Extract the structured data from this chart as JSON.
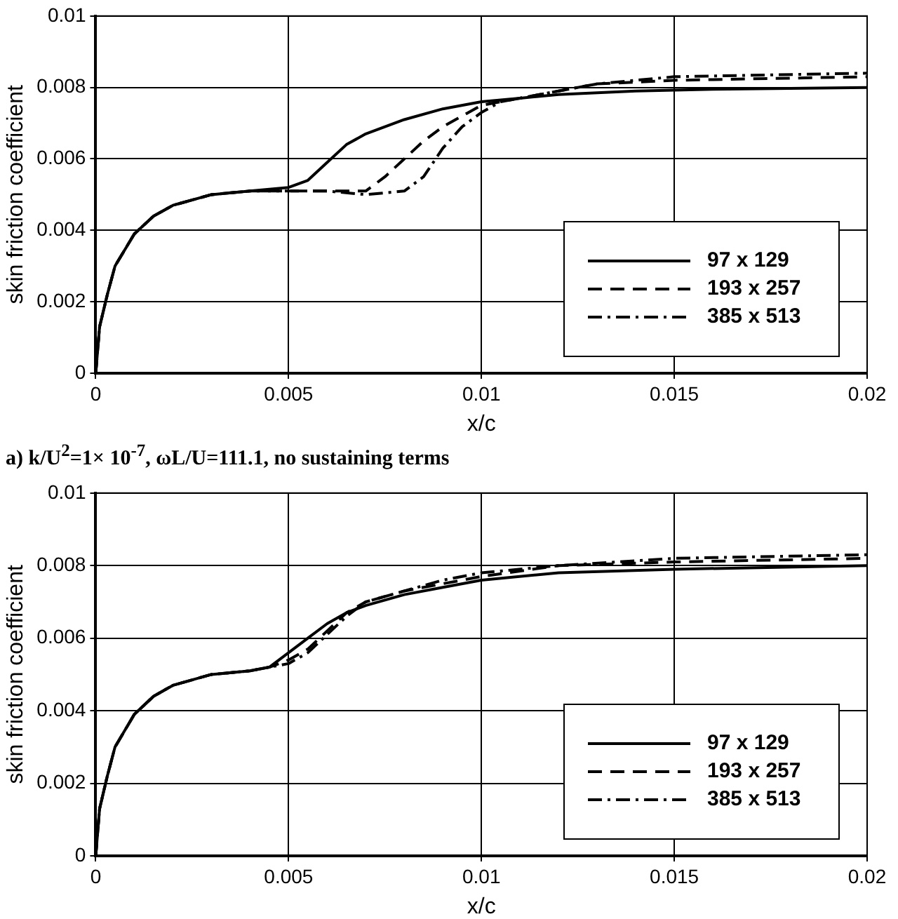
{
  "chart_data": [
    {
      "type": "line",
      "xlabel": "x/c",
      "ylabel": "skin friction coefficient",
      "xlim": [
        0,
        0.02
      ],
      "ylim": [
        0,
        0.01
      ],
      "xticks": [
        0,
        0.005,
        0.01,
        0.015,
        0.02
      ],
      "yticks": [
        0,
        0.002,
        0.004,
        0.006,
        0.008,
        0.01
      ],
      "grid": true,
      "legend": "bottom right",
      "marker": "none",
      "annotations": [
        "a) k/U$^{2}$=1× 10$^{-7}$,  ωL/U=111.1, no sustaining terms"
      ],
      "series": [
        {
          "name": "97 x 129",
          "color": "#000000",
          "line_style": "solid",
          "x": [
            0,
            0.0001,
            0.0003,
            0.0005,
            0.001,
            0.0015,
            0.002,
            0.003,
            0.004,
            0.005,
            0.0055,
            0.006,
            0.0065,
            0.007,
            0.008,
            0.009,
            0.01,
            0.011,
            0.012,
            0.014,
            0.016,
            0.02
          ],
          "values": [
            0,
            0.0013,
            0.0022,
            0.003,
            0.0039,
            0.0044,
            0.0047,
            0.005,
            0.0051,
            0.0052,
            0.0054,
            0.0059,
            0.0064,
            0.0067,
            0.0071,
            0.0074,
            0.0076,
            0.0077,
            0.0078,
            0.0079,
            0.00795,
            0.008
          ]
        },
        {
          "name": "193 x 257",
          "color": "#000000",
          "line_style": "dashed",
          "x": [
            0,
            0.0001,
            0.0003,
            0.0005,
            0.001,
            0.0015,
            0.002,
            0.003,
            0.004,
            0.005,
            0.006,
            0.007,
            0.0075,
            0.008,
            0.0085,
            0.009,
            0.0095,
            0.01,
            0.011,
            0.012,
            0.013,
            0.015,
            0.02
          ],
          "values": [
            0,
            0.0013,
            0.0022,
            0.003,
            0.0039,
            0.0044,
            0.0047,
            0.005,
            0.0051,
            0.0051,
            0.0051,
            0.0051,
            0.0055,
            0.006,
            0.0065,
            0.0069,
            0.0072,
            0.0075,
            0.0077,
            0.0079,
            0.0081,
            0.0082,
            0.0083
          ]
        },
        {
          "name": "385 x 513",
          "color": "#000000",
          "line_style": "dashdot",
          "x": [
            0,
            0.0001,
            0.0003,
            0.0005,
            0.001,
            0.0015,
            0.002,
            0.003,
            0.004,
            0.005,
            0.006,
            0.007,
            0.008,
            0.0085,
            0.009,
            0.0095,
            0.01,
            0.0105,
            0.011,
            0.012,
            0.013,
            0.015,
            0.02
          ],
          "values": [
            0,
            0.0013,
            0.0022,
            0.003,
            0.0039,
            0.0044,
            0.0047,
            0.005,
            0.0051,
            0.0051,
            0.0051,
            0.005,
            0.0051,
            0.0055,
            0.0063,
            0.0069,
            0.0073,
            0.0076,
            0.0077,
            0.0079,
            0.0081,
            0.0083,
            0.0084
          ]
        }
      ]
    },
    {
      "type": "line",
      "xlabel": "x/c",
      "ylabel": "skin friction coefficient",
      "xlim": [
        0,
        0.02
      ],
      "ylim": [
        0,
        0.01
      ],
      "xticks": [
        0,
        0.005,
        0.01,
        0.015,
        0.02
      ],
      "yticks": [
        0,
        0.002,
        0.004,
        0.006,
        0.008,
        0.01
      ],
      "grid": true,
      "legend": "bottom right",
      "marker": "none",
      "series": [
        {
          "name": "97 x 129",
          "color": "#000000",
          "line_style": "solid",
          "x": [
            0,
            0.0001,
            0.0003,
            0.0005,
            0.001,
            0.0015,
            0.002,
            0.003,
            0.004,
            0.0045,
            0.005,
            0.0055,
            0.006,
            0.0065,
            0.007,
            0.008,
            0.009,
            0.01,
            0.012,
            0.015,
            0.02
          ],
          "values": [
            0,
            0.0013,
            0.0022,
            0.003,
            0.0039,
            0.0044,
            0.0047,
            0.005,
            0.0051,
            0.0052,
            0.0056,
            0.006,
            0.0064,
            0.0067,
            0.0069,
            0.0072,
            0.0074,
            0.0076,
            0.0078,
            0.0079,
            0.008
          ]
        },
        {
          "name": "193 x 257",
          "color": "#000000",
          "line_style": "dashed",
          "x": [
            0,
            0.0001,
            0.0003,
            0.0005,
            0.001,
            0.0015,
            0.002,
            0.003,
            0.004,
            0.0045,
            0.005,
            0.0055,
            0.006,
            0.0065,
            0.007,
            0.008,
            0.009,
            0.01,
            0.012,
            0.015,
            0.02
          ],
          "values": [
            0,
            0.0013,
            0.0022,
            0.003,
            0.0039,
            0.0044,
            0.0047,
            0.005,
            0.0051,
            0.0052,
            0.0054,
            0.0057,
            0.0062,
            0.0067,
            0.007,
            0.0073,
            0.0075,
            0.0077,
            0.008,
            0.0081,
            0.0082
          ]
        },
        {
          "name": "385 x 513",
          "color": "#000000",
          "line_style": "dashdot",
          "x": [
            0,
            0.0001,
            0.0003,
            0.0005,
            0.001,
            0.0015,
            0.002,
            0.003,
            0.004,
            0.0045,
            0.005,
            0.0055,
            0.006,
            0.0065,
            0.007,
            0.008,
            0.009,
            0.01,
            0.012,
            0.015,
            0.02
          ],
          "values": [
            0,
            0.0013,
            0.0022,
            0.003,
            0.0039,
            0.0044,
            0.0047,
            0.005,
            0.0051,
            0.0052,
            0.0053,
            0.0056,
            0.0061,
            0.0066,
            0.007,
            0.0073,
            0.0076,
            0.0078,
            0.008,
            0.0082,
            0.0083
          ]
        }
      ]
    }
  ]
}
